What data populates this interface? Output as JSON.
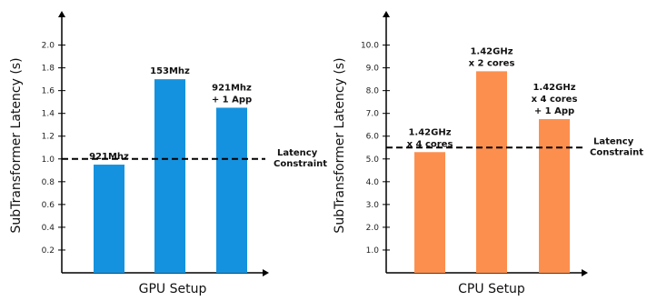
{
  "chart_data": [
    {
      "type": "bar",
      "xlabel": "GPU Setup",
      "ylabel": "SubTransformer Latency (s)",
      "ylim": [
        0,
        2.3
      ],
      "yticks": [
        "0.2",
        "0.4",
        "0.6",
        "0.8",
        "1.0",
        "1.2",
        "1.4",
        "1.6",
        "1.8",
        "2.0"
      ],
      "bars": [
        {
          "value": 0.95,
          "label_lines": [
            "921Mhz"
          ]
        },
        {
          "value": 1.7,
          "label_lines": [
            "153Mhz"
          ]
        },
        {
          "value": 1.45,
          "label_lines": [
            "921Mhz",
            "+ 1 App"
          ]
        }
      ],
      "bar_color": "#1592df",
      "reference_line": {
        "value": 1.0,
        "label_lines": [
          "Latency",
          "Constraint"
        ]
      },
      "grid": false
    },
    {
      "type": "bar",
      "xlabel": "CPU Setup",
      "ylabel": "SubTransformer Latency (s)",
      "ylim": [
        0,
        11.5
      ],
      "yticks": [
        "1.0",
        "2.0",
        "3.0",
        "4.0",
        "5.0",
        "6.0",
        "7.0",
        "8.0",
        "9.0",
        "10.0"
      ],
      "bars": [
        {
          "value": 5.3,
          "label_lines": [
            "1.42GHz",
            "x 4 cores"
          ]
        },
        {
          "value": 8.85,
          "label_lines": [
            "1.42GHz",
            "x 2 cores"
          ]
        },
        {
          "value": 6.75,
          "label_lines": [
            "1.42GHz",
            "x 4 cores",
            "+ 1 App"
          ]
        }
      ],
      "bar_color": "#fd8f4e",
      "reference_line": {
        "value": 5.5,
        "label_lines": [
          "Latency",
          "Constraint"
        ]
      },
      "grid": false
    }
  ]
}
